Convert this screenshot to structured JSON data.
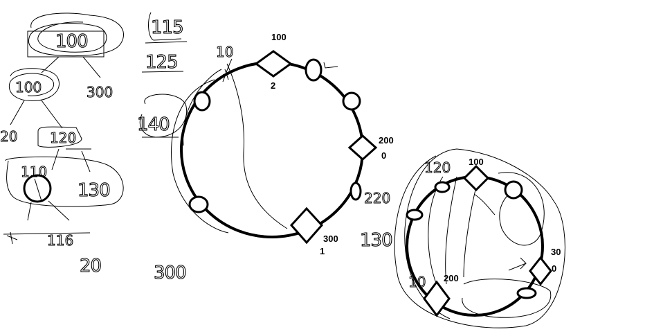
{
  "left_ring": {
    "label_100": "100",
    "label_2": "2",
    "label_200": "200",
    "label_0": "0",
    "label_300": "300",
    "label_1": "1"
  },
  "right_ring": {
    "label_100": "100",
    "label_30": "30",
    "label_0": "0",
    "label_200": "200"
  },
  "handwriting": {
    "w100": "100",
    "w300": "300",
    "w100b": "100",
    "w20": "20",
    "w120": "120",
    "w110": "110",
    "w130": "130",
    "w115": "115",
    "w125": "125",
    "w140": "140",
    "w116": "116",
    "w20b": "20",
    "w300b": "300",
    "w220": "220",
    "w130b": "130",
    "w120b": "120",
    "w10": "10"
  }
}
